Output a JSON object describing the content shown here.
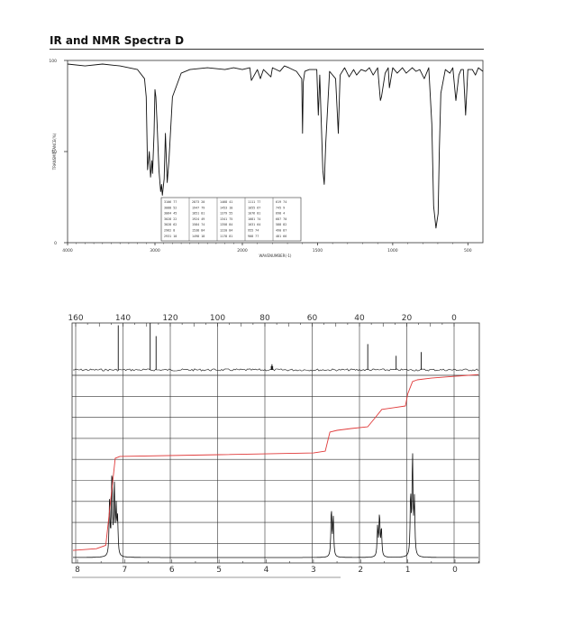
{
  "header": {
    "title": "IR and NMR Spectra D"
  },
  "colors": {
    "trace": "#111111",
    "grid": "#333333",
    "integral": "#e03a3a",
    "axis_text": "#555555"
  },
  "chart_data": [
    {
      "type": "line",
      "name": "ir-spectrum",
      "xlabel": "WAVENUMBER(-1)",
      "ylabel": "TRANSMITTANCE(%)",
      "xlim": [
        4000,
        400
      ],
      "ylim": [
        0,
        100
      ],
      "x_ticks": [
        "4000",
        "3000",
        "2000",
        "1500",
        "1000",
        "500"
      ],
      "x_tick_values": [
        4000,
        3000,
        2000,
        1500,
        1000,
        500
      ],
      "y_ticks": [
        "100",
        "50",
        "0"
      ],
      "y_tick_values": [
        100,
        50,
        0
      ],
      "series": [
        {
          "x": [
            4000,
            3800,
            3600,
            3400,
            3200,
            3120,
            3100,
            3085,
            3065,
            3050,
            3035,
            3028,
            3010,
            3000,
            2990,
            2975,
            2955,
            2935,
            2925,
            2915,
            2895,
            2880,
            2860,
            2840,
            2800,
            2700,
            2600,
            2400,
            2200,
            2100,
            2000,
            1950,
            1940,
            1900,
            1880,
            1860,
            1810,
            1800,
            1750,
            1720,
            1690,
            1640,
            1605,
            1600,
            1595,
            1585,
            1555,
            1505,
            1495,
            1485,
            1465,
            1455,
            1445,
            1420,
            1380,
            1362,
            1350,
            1320,
            1290,
            1260,
            1240,
            1210,
            1180,
            1155,
            1130,
            1100,
            1082,
            1075,
            1050,
            1030,
            1022,
            1000,
            970,
            935,
            910,
            870,
            845,
            820,
            790,
            760,
            740,
            728,
            712,
            698,
            690,
            680,
            650,
            620,
            600,
            580,
            560,
            545,
            530,
            515,
            500,
            470,
            450,
            430,
            400
          ],
          "y": [
            98,
            97,
            98,
            97,
            95,
            90,
            80,
            40,
            50,
            36,
            45,
            38,
            60,
            84,
            80,
            65,
            40,
            28,
            32,
            26,
            35,
            60,
            33,
            45,
            80,
            93,
            95,
            96,
            95,
            96,
            95,
            96,
            89,
            95,
            90,
            95,
            91,
            96,
            94,
            97,
            96,
            94,
            90,
            60,
            88,
            94,
            95,
            95,
            70,
            92,
            40,
            32,
            55,
            94,
            90,
            60,
            92,
            96,
            91,
            95,
            92,
            95,
            94,
            96,
            92,
            96,
            78,
            80,
            93,
            96,
            85,
            96,
            93,
            96,
            93,
            96,
            94,
            95,
            90,
            96,
            65,
            20,
            8,
            16,
            50,
            82,
            95,
            93,
            96,
            78,
            92,
            95,
            95,
            70,
            95,
            95,
            92,
            96,
            94
          ]
        }
      ],
      "legend_table": [
        [
          "3106 77",
          "2873 20",
          "1468 41",
          "1111 77",
          "619 74"
        ],
        [
          "3088 52",
          "1947 79",
          "1453 10",
          "1055 67",
          "745 9"
        ],
        [
          "3064 45",
          "1851 81",
          "1379 55",
          "1076 81",
          "698 4"
        ],
        [
          "3028 22",
          "1924 49",
          "1341 75",
          "1081 74",
          "687 70"
        ],
        [
          "3028 62",
          "1584 74",
          "1358 84",
          "1031 64",
          "588 82"
        ],
        [
          "2962 8",
          "1538 84",
          "1220 84",
          "955 74",
          "490 87"
        ],
        [
          "2931 10",
          "1498 18",
          "1178 81",
          "908 77",
          "481 66"
        ]
      ]
    },
    {
      "type": "line",
      "name": "c13-nmr-spectrum",
      "xlabel": "",
      "ylabel": "",
      "xlim": [
        160,
        0
      ],
      "x_ticks": [
        "160",
        "140",
        "120",
        "100",
        "80",
        "60",
        "40",
        "20",
        "0"
      ],
      "x_tick_values": [
        160,
        140,
        120,
        100,
        80,
        60,
        40,
        20,
        0
      ],
      "peaks_ppm": [
        142.0,
        128.5,
        126.0,
        77.0,
        76.7,
        77.3,
        36.5,
        24.5,
        13.9
      ],
      "peaks_height": [
        0.95,
        1.0,
        0.72,
        0.12,
        0.08,
        0.08,
        0.55,
        0.3,
        0.38
      ]
    },
    {
      "type": "line",
      "name": "h1-nmr-spectrum",
      "xlabel": "",
      "ylabel": "",
      "xlim": [
        8.3,
        -0.5
      ],
      "x_ticks": [
        "8",
        "7",
        "6",
        "5",
        "4",
        "3",
        "2",
        "1",
        "0"
      ],
      "x_tick_values": [
        8,
        7,
        6,
        5,
        4,
        3,
        2,
        1,
        0
      ],
      "peaks_ppm": [
        7.32,
        7.27,
        7.22,
        7.18,
        7.15,
        2.62,
        2.58,
        1.64,
        1.6,
        1.56,
        0.94,
        0.9,
        0.86
      ],
      "peaks_height": [
        0.55,
        0.85,
        0.7,
        0.45,
        0.35,
        0.48,
        0.4,
        0.3,
        0.42,
        0.28,
        0.6,
        1.0,
        0.55
      ],
      "integral": {
        "x": [
          8.3,
          7.6,
          7.4,
          7.3,
          7.2,
          7.1,
          5.0,
          3.0,
          2.75,
          2.65,
          2.5,
          2.2,
          1.85,
          1.7,
          1.55,
          1.3,
          1.05,
          1.0,
          0.9,
          0.8,
          0.5,
          0.0,
          -0.5
        ],
        "y": [
          0.02,
          0.03,
          0.05,
          0.3,
          0.55,
          0.56,
          0.57,
          0.58,
          0.59,
          0.7,
          0.71,
          0.72,
          0.73,
          0.78,
          0.83,
          0.84,
          0.85,
          0.92,
          0.99,
          1.0,
          1.01,
          1.02,
          1.03
        ]
      }
    }
  ]
}
